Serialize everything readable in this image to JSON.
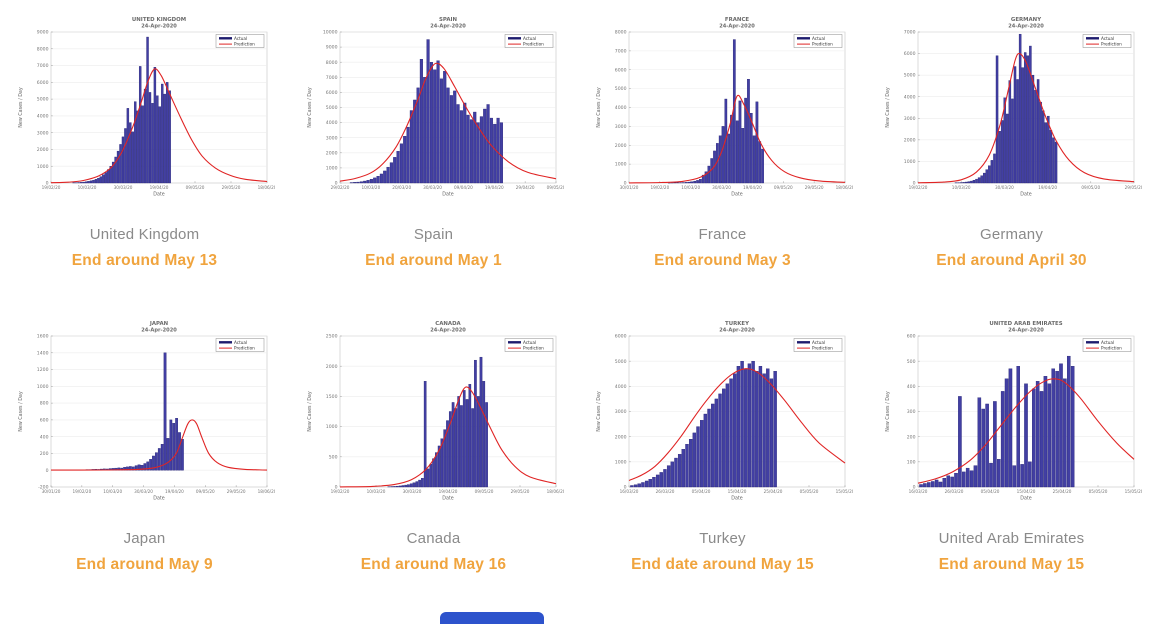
{
  "colors": {
    "actual_fill": "#423fa3",
    "actual_edge": "#1d1b6e",
    "prediction": "#e02424",
    "caption_gray": "#8a8a8a",
    "end_orange": "#f0a43e"
  },
  "chart_data": [
    {
      "type": "bar",
      "country_caption": "United Kingdom",
      "end_label": "End around May 13",
      "title_line1": "UNITED KINGDOM",
      "title_line2": "24-Apr-2020",
      "xlabel": "Date",
      "ylabel": "New Cases / Day",
      "legend": [
        "Actual",
        "Prediction"
      ],
      "ylim": [
        0,
        9000
      ],
      "yticks": [
        0,
        1000,
        2000,
        3000,
        4000,
        5000,
        6000,
        7000,
        8000,
        9000
      ],
      "xticks": [
        "19/02/20",
        "10/03/20",
        "30/03/20",
        "19/04/20",
        "09/05/20",
        "29/05/20",
        "18/06/20"
      ],
      "bars": {
        "start": 0.1,
        "end": 0.555,
        "values": [
          15,
          20,
          30,
          40,
          55,
          75,
          100,
          130,
          170,
          220,
          290,
          380,
          490,
          630,
          800,
          1000,
          1250,
          1550,
          1900,
          2300,
          2750,
          3250,
          4450,
          3600,
          3050,
          4850,
          4300,
          6950,
          4600,
          5600,
          8700,
          5400,
          4750,
          6900,
          5200,
          4550,
          5900,
          5300,
          6000,
          5500
        ]
      },
      "prediction": [
        [
          0,
          15
        ],
        [
          0.08,
          50
        ],
        [
          0.15,
          150
        ],
        [
          0.22,
          420
        ],
        [
          0.28,
          950
        ],
        [
          0.33,
          1900
        ],
        [
          0.38,
          3400
        ],
        [
          0.42,
          4900
        ],
        [
          0.45,
          6100
        ],
        [
          0.48,
          6800
        ],
        [
          0.51,
          6400
        ],
        [
          0.55,
          5300
        ],
        [
          0.6,
          3900
        ],
        [
          0.65,
          2600
        ],
        [
          0.7,
          1600
        ],
        [
          0.76,
          900
        ],
        [
          0.83,
          450
        ],
        [
          0.9,
          220
        ],
        [
          1,
          90
        ]
      ]
    },
    {
      "type": "bar",
      "country_caption": "Spain",
      "end_label": "End around May 1",
      "title_line1": "SPAIN",
      "title_line2": "24-Apr-2020",
      "xlabel": "Date",
      "ylabel": "New Cases / Day",
      "legend": [
        "Actual",
        "Prediction"
      ],
      "ylim": [
        0,
        10000
      ],
      "yticks": [
        0,
        1000,
        2000,
        3000,
        4000,
        5000,
        6000,
        7000,
        8000,
        9000,
        10000
      ],
      "xticks": [
        "29/02/20",
        "10/03/20",
        "20/03/20",
        "30/03/20",
        "09/04/20",
        "19/04/20",
        "29/04/20",
        "09/05/20"
      ],
      "bars": {
        "start": 0.045,
        "end": 0.755,
        "values": [
          30,
          45,
          60,
          90,
          130,
          180,
          250,
          340,
          450,
          600,
          800,
          1050,
          1350,
          1700,
          2100,
          2600,
          3100,
          3700,
          4800,
          5500,
          6300,
          8200,
          7000,
          9500,
          8000,
          7500,
          8100,
          6900,
          7400,
          6300,
          5800,
          6100,
          5200,
          4800,
          5300,
          4500,
          4200,
          4700,
          4000,
          4400,
          4900,
          5200,
          4300,
          3900,
          4300,
          4000
        ]
      },
      "prediction": [
        [
          0,
          120
        ],
        [
          0.07,
          300
        ],
        [
          0.14,
          650
        ],
        [
          0.2,
          1300
        ],
        [
          0.26,
          2400
        ],
        [
          0.31,
          3800
        ],
        [
          0.36,
          5500
        ],
        [
          0.4,
          7000
        ],
        [
          0.44,
          7900
        ],
        [
          0.48,
          7600
        ],
        [
          0.53,
          6400
        ],
        [
          0.58,
          5100
        ],
        [
          0.64,
          3700
        ],
        [
          0.7,
          2500
        ],
        [
          0.78,
          1400
        ],
        [
          0.87,
          700
        ],
        [
          1,
          280
        ]
      ]
    },
    {
      "type": "bar",
      "country_caption": "France",
      "end_label": "End around May 3",
      "title_line1": "FRANCE",
      "title_line2": "24-Apr-2020",
      "xlabel": "Date",
      "ylabel": "New Cases / Day",
      "legend": [
        "Actual",
        "Prediction"
      ],
      "ylim": [
        0,
        8000
      ],
      "yticks": [
        0,
        1000,
        2000,
        3000,
        4000,
        5000,
        6000,
        7000,
        8000
      ],
      "xticks": [
        "30/01/20",
        "19/02/20",
        "10/03/20",
        "30/03/20",
        "19/04/20",
        "09/05/20",
        "29/05/20",
        "18/06/20"
      ],
      "bars": {
        "start": 0.18,
        "end": 0.625,
        "values": [
          5,
          8,
          10,
          14,
          18,
          25,
          35,
          50,
          70,
          100,
          140,
          200,
          420,
          600,
          900,
          1300,
          1700,
          2100,
          2500,
          3000,
          4450,
          2600,
          3600,
          7600,
          3300,
          4350,
          2900,
          4500,
          5500,
          3700,
          2500,
          4300,
          2200,
          1800
        ]
      },
      "prediction": [
        [
          0,
          5
        ],
        [
          0.15,
          25
        ],
        [
          0.25,
          90
        ],
        [
          0.33,
          300
        ],
        [
          0.39,
          800
        ],
        [
          0.43,
          1700
        ],
        [
          0.47,
          3200
        ],
        [
          0.5,
          4600
        ],
        [
          0.53,
          4200
        ],
        [
          0.57,
          3200
        ],
        [
          0.61,
          2100
        ],
        [
          0.66,
          1200
        ],
        [
          0.72,
          600
        ],
        [
          0.79,
          280
        ],
        [
          0.88,
          110
        ],
        [
          1,
          35
        ]
      ]
    },
    {
      "type": "bar",
      "country_caption": "Germany",
      "end_label": "End around April 30",
      "title_line1": "GERMANY",
      "title_line2": "24-Apr-2020",
      "xlabel": "Date",
      "ylabel": "New Cases / Day",
      "legend": [
        "Actual",
        "Prediction"
      ],
      "ylim": [
        0,
        7000
      ],
      "yticks": [
        0,
        1000,
        2000,
        3000,
        4000,
        5000,
        6000,
        7000
      ],
      "xticks": [
        "19/02/20",
        "10/03/20",
        "30/03/20",
        "19/04/20",
        "09/05/20",
        "29/05/20"
      ],
      "bars": {
        "start": 0.17,
        "end": 0.645,
        "values": [
          10,
          15,
          20,
          30,
          45,
          65,
          90,
          130,
          180,
          250,
          340,
          460,
          620,
          800,
          1050,
          1350,
          5900,
          2400,
          2900,
          3950,
          3200,
          4750,
          3900,
          5400,
          4800,
          6900,
          5350,
          6050,
          5900,
          6350,
          5000,
          4300,
          4800,
          3750,
          3350,
          2800,
          3100,
          2450,
          2100,
          1900
        ]
      },
      "prediction": [
        [
          0,
          8
        ],
        [
          0.12,
          40
        ],
        [
          0.2,
          150
        ],
        [
          0.27,
          500
        ],
        [
          0.33,
          1300
        ],
        [
          0.38,
          2700
        ],
        [
          0.42,
          4400
        ],
        [
          0.45,
          5700
        ],
        [
          0.47,
          6000
        ],
        [
          0.5,
          5600
        ],
        [
          0.54,
          4500
        ],
        [
          0.59,
          3100
        ],
        [
          0.64,
          1950
        ],
        [
          0.7,
          1050
        ],
        [
          0.77,
          480
        ],
        [
          0.86,
          190
        ],
        [
          1,
          60
        ]
      ]
    },
    {
      "type": "bar",
      "country_caption": "Japan",
      "end_label": "End around May 9",
      "title_line1": "JAPAN",
      "title_line2": "24-Apr-2020",
      "xlabel": "Date",
      "ylabel": "New Cases / Day",
      "legend": [
        "Actual",
        "Prediction"
      ],
      "ylim": [
        -200,
        1600
      ],
      "yticks": [
        -200,
        0,
        200,
        400,
        600,
        800,
        1000,
        1200,
        1400,
        1600
      ],
      "xticks": [
        "30/01/20",
        "19/02/20",
        "10/03/20",
        "30/03/20",
        "19/04/20",
        "09/05/20",
        "29/05/20",
        "18/06/20"
      ],
      "bars": {
        "start": 0.08,
        "end": 0.615,
        "values": [
          2,
          3,
          3,
          4,
          5,
          6,
          8,
          8,
          10,
          12,
          10,
          14,
          16,
          15,
          20,
          22,
          25,
          28,
          26,
          35,
          40,
          45,
          40,
          55,
          65,
          60,
          80,
          100,
          130,
          170,
          210,
          260,
          310,
          1400,
          380,
          600,
          560,
          620,
          450,
          370
        ]
      },
      "prediction": [
        [
          0,
          1
        ],
        [
          0.25,
          3
        ],
        [
          0.4,
          10
        ],
        [
          0.48,
          30
        ],
        [
          0.54,
          90
        ],
        [
          0.58,
          200
        ],
        [
          0.61,
          400
        ],
        [
          0.635,
          560
        ],
        [
          0.655,
          600
        ],
        [
          0.675,
          550
        ],
        [
          0.7,
          380
        ],
        [
          0.73,
          200
        ],
        [
          0.77,
          90
        ],
        [
          0.82,
          35
        ],
        [
          0.9,
          10
        ],
        [
          1,
          2
        ]
      ]
    },
    {
      "type": "bar",
      "country_caption": "Canada",
      "end_label": "End around May 16",
      "title_line1": "CANADA",
      "title_line2": "24-Apr-2020",
      "xlabel": "Date",
      "ylabel": "New Cases / Day",
      "legend": [
        "Actual",
        "Prediction"
      ],
      "ylim": [
        0,
        2500
      ],
      "yticks": [
        0,
        500,
        1000,
        1500,
        2000,
        2500
      ],
      "xticks": [
        "19/02/20",
        "10/03/20",
        "30/03/20",
        "19/04/20",
        "09/05/20",
        "29/05/20",
        "18/06/20"
      ],
      "bars": {
        "start": 0.22,
        "end": 0.685,
        "values": [
          5,
          8,
          10,
          14,
          18,
          25,
          32,
          40,
          55,
          70,
          90,
          115,
          145,
          1750,
          300,
          380,
          470,
          570,
          680,
          800,
          950,
          1100,
          1250,
          1400,
          1300,
          1500,
          1350,
          1600,
          1450,
          1700,
          1300,
          2100,
          1500,
          2150,
          1750,
          1400
        ]
      },
      "prediction": [
        [
          0,
          2
        ],
        [
          0.15,
          10
        ],
        [
          0.25,
          40
        ],
        [
          0.33,
          120
        ],
        [
          0.4,
          300
        ],
        [
          0.46,
          620
        ],
        [
          0.51,
          1050
        ],
        [
          0.55,
          1450
        ],
        [
          0.58,
          1650
        ],
        [
          0.61,
          1580
        ],
        [
          0.65,
          1320
        ],
        [
          0.7,
          950
        ],
        [
          0.75,
          610
        ],
        [
          0.81,
          340
        ],
        [
          0.88,
          165
        ],
        [
          1,
          55
        ]
      ]
    },
    {
      "type": "bar",
      "country_caption": "Turkey",
      "end_label": "End date around May 15",
      "title_line1": "TURKEY",
      "title_line2": "24-Apr-2020",
      "xlabel": "Date",
      "ylabel": "New Cases / Day",
      "legend": [
        "Actual",
        "Prediction"
      ],
      "ylim": [
        0,
        6000
      ],
      "yticks": [
        0,
        1000,
        2000,
        3000,
        4000,
        5000,
        6000
      ],
      "xticks": [
        "16/03/20",
        "26/03/20",
        "05/04/20",
        "15/04/20",
        "25/04/20",
        "05/05/20",
        "15/05/20"
      ],
      "bars": {
        "start": 0.005,
        "end": 0.685,
        "values": [
          60,
          90,
          130,
          180,
          240,
          310,
          390,
          480,
          580,
          700,
          850,
          1000,
          1150,
          1300,
          1500,
          1700,
          1900,
          2150,
          2400,
          2650,
          2900,
          3100,
          3300,
          3500,
          3700,
          3900,
          4100,
          4300,
          4500,
          4800,
          5000,
          4700,
          4900,
          5000,
          4600,
          4800,
          4500,
          4700,
          4300,
          4600
        ]
      },
      "prediction": [
        [
          0,
          260
        ],
        [
          0.06,
          480
        ],
        [
          0.12,
          820
        ],
        [
          0.18,
          1350
        ],
        [
          0.24,
          2000
        ],
        [
          0.3,
          2750
        ],
        [
          0.36,
          3450
        ],
        [
          0.42,
          4050
        ],
        [
          0.48,
          4500
        ],
        [
          0.54,
          4700
        ],
        [
          0.59,
          4580
        ],
        [
          0.65,
          4150
        ],
        [
          0.72,
          3450
        ],
        [
          0.8,
          2550
        ],
        [
          0.88,
          1750
        ],
        [
          1,
          950
        ]
      ]
    },
    {
      "type": "bar",
      "country_caption": "United Arab Emirates",
      "end_label": "End around May 15",
      "title_line1": "UNITED ARAB EMIRATES",
      "title_line2": "24-Apr-2020",
      "xlabel": "Date",
      "ylabel": "New Cases / Day",
      "legend": [
        "Actual",
        "Prediction"
      ],
      "ylim": [
        0,
        600
      ],
      "yticks": [
        0,
        100,
        200,
        300,
        400,
        500,
        600
      ],
      "xticks": [
        "16/03/20",
        "26/03/20",
        "05/04/20",
        "15/04/20",
        "25/04/20",
        "05/05/20",
        "15/05/20"
      ],
      "bars": {
        "start": 0.005,
        "end": 0.725,
        "values": [
          10,
          14,
          18,
          22,
          28,
          20,
          35,
          45,
          40,
          55,
          360,
          60,
          75,
          65,
          85,
          355,
          310,
          330,
          95,
          340,
          110,
          380,
          430,
          470,
          85,
          480,
          90,
          410,
          100,
          390,
          420,
          380,
          440,
          410,
          470,
          460,
          490,
          430,
          520,
          480
        ]
      },
      "prediction": [
        [
          0,
          15
        ],
        [
          0.08,
          32
        ],
        [
          0.16,
          60
        ],
        [
          0.24,
          105
        ],
        [
          0.31,
          165
        ],
        [
          0.38,
          240
        ],
        [
          0.45,
          315
        ],
        [
          0.52,
          380
        ],
        [
          0.58,
          418
        ],
        [
          0.63,
          430
        ],
        [
          0.68,
          415
        ],
        [
          0.75,
          355
        ],
        [
          0.83,
          265
        ],
        [
          0.92,
          175
        ],
        [
          1,
          110
        ]
      ]
    }
  ]
}
